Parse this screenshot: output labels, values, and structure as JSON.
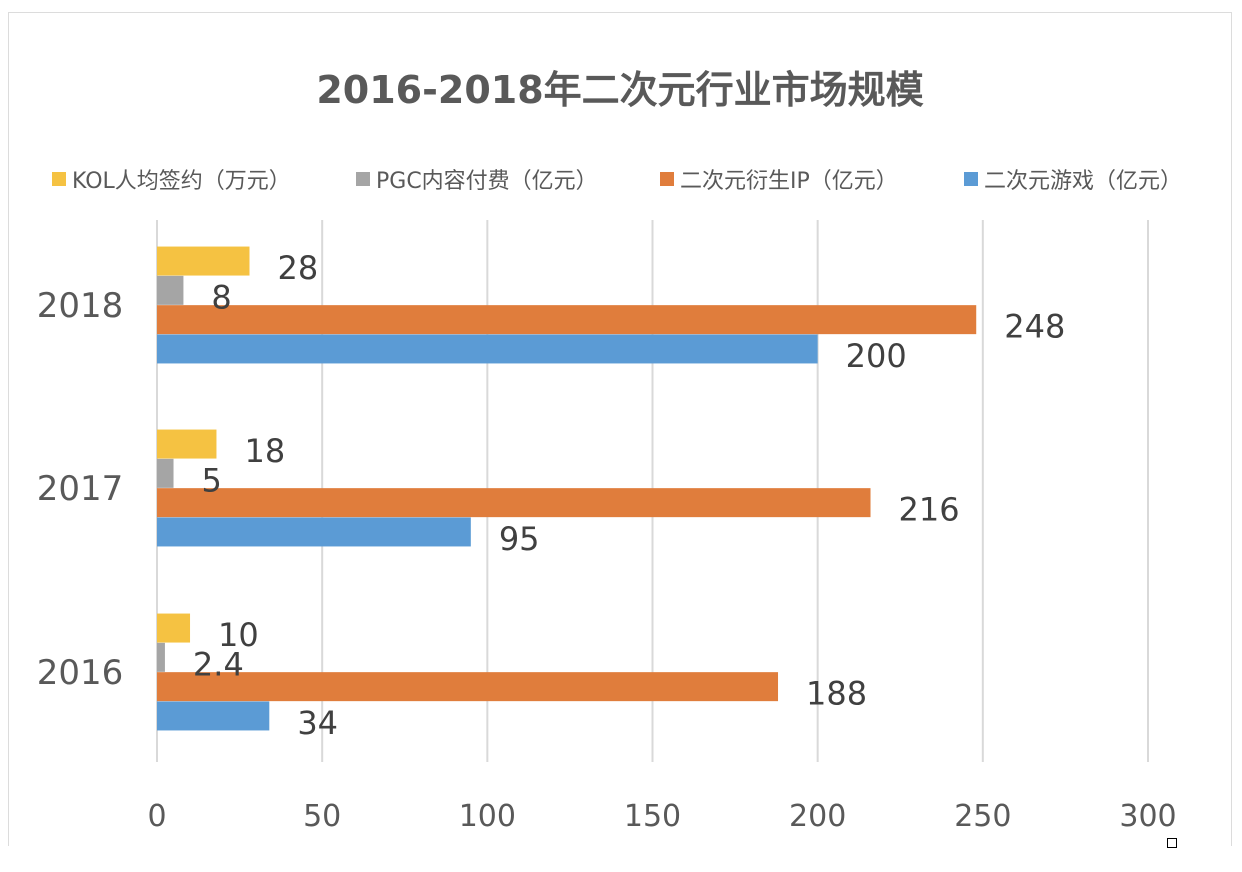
{
  "chart_data": {
    "type": "bar",
    "orientation": "horizontal",
    "title": "2016-2018年二次元行业市场规模",
    "categories": [
      "2016",
      "2017",
      "2018"
    ],
    "series": [
      {
        "name": "KOL人均签约（万元）",
        "values": [
          10,
          18,
          28
        ],
        "color": "#f5c242"
      },
      {
        "name": "PGC内容付费（亿元）",
        "values": [
          2.4,
          5,
          8
        ],
        "color": "#a5a5a5"
      },
      {
        "name": "二次元衍生IP（亿元）",
        "values": [
          188,
          216,
          248
        ],
        "color": "#e07d3c"
      },
      {
        "name": "二次元游戏（亿元）",
        "values": [
          34,
          95,
          200
        ],
        "color": "#5b9bd5"
      }
    ],
    "value_labels": [
      [
        "10",
        "18",
        "28"
      ],
      [
        "2.4",
        "5",
        "8"
      ],
      [
        "188",
        "216",
        "248"
      ],
      [
        "34",
        "95",
        "200"
      ]
    ],
    "xlim": [
      0,
      300
    ],
    "xticks": [
      "0",
      "50",
      "100",
      "150",
      "200",
      "250",
      "300"
    ],
    "grid": true,
    "legend_position": "top"
  }
}
